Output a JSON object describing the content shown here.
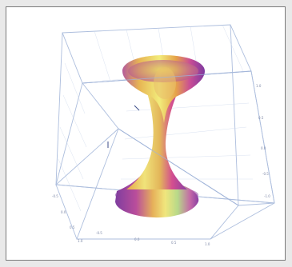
{
  "chart_data": {
    "type": "surface",
    "surface": "hyperboloid-of-one-sheet",
    "equation": "x^2 + y^2 - z^2 = 1",
    "colormap": "rainbow (purple-magenta-orange-yellow-green)",
    "bounding_box": true,
    "grid": true,
    "x_ticks": [
      "-0.5",
      "0.0",
      "0.5",
      "1.0"
    ],
    "y_ticks": [
      "-0.5",
      "0.0",
      "0.5",
      "1.0"
    ],
    "z_ticks": [
      "-1.0",
      "-0.5",
      "0.0",
      "0.5",
      "1.0"
    ]
  },
  "colors": {
    "box": "#9fb3d8",
    "grid": "#c9d5ea",
    "surface_dark": "#7b3fa0",
    "surface_mid": "#d84fa0",
    "surface_warm": "#e9a33a",
    "surface_light": "#e9e56a",
    "surface_green": "#9fd27a"
  }
}
